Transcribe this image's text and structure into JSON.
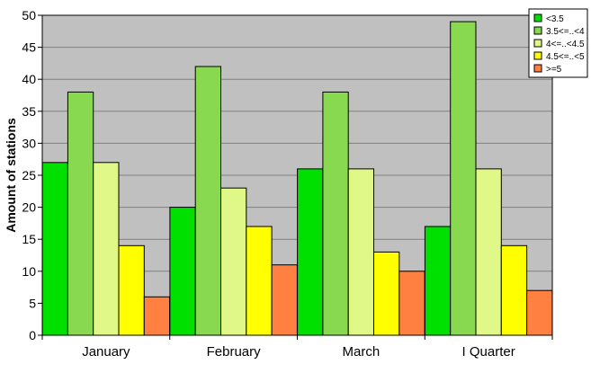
{
  "chart_data": {
    "type": "bar",
    "title": "",
    "xlabel": "",
    "ylabel": "Amount of stations",
    "ylim": [
      0,
      50
    ],
    "yticks": [
      0,
      5,
      10,
      15,
      20,
      25,
      30,
      35,
      40,
      45,
      50
    ],
    "grid": true,
    "legend_position": "top-right",
    "plot_background": "#c0c0c0",
    "categories": [
      "January",
      "February",
      "March",
      "I Quarter"
    ],
    "series": [
      {
        "name": "<3.5",
        "color": "#00e000",
        "values": [
          27,
          20,
          26,
          17
        ]
      },
      {
        "name": "3.5<=..<4",
        "color": "#88d850",
        "values": [
          38,
          42,
          38,
          49
        ]
      },
      {
        "name": "4<=..<4.5",
        "color": "#e0f888",
        "values": [
          27,
          23,
          26,
          26
        ]
      },
      {
        "name": "4.5<=..<5",
        "color": "#ffff00",
        "values": [
          14,
          17,
          13,
          14
        ]
      },
      {
        "name": ">=5",
        "color": "#ff8040",
        "values": [
          6,
          11,
          10,
          7
        ]
      }
    ]
  }
}
